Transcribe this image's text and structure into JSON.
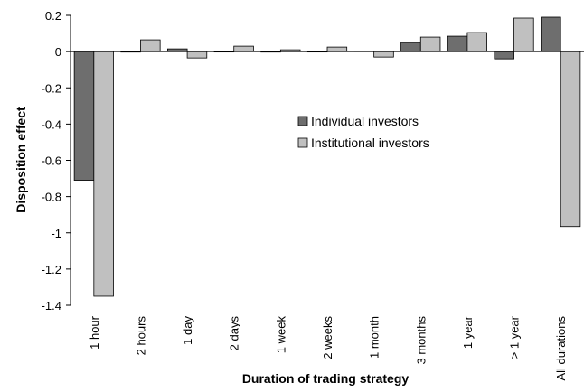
{
  "chart_data": {
    "type": "bar",
    "y_label": "Disposition effect",
    "x_label": "Duration of trading strategy",
    "categories": [
      "1 hour",
      "2 hours",
      "1 day",
      "2 days",
      "1 week",
      "2 weeks",
      "1 month",
      "3 months",
      "1 year",
      "> 1 year",
      "All durations"
    ],
    "series": [
      {
        "name": "Individual investors",
        "color": "#6e6e6e",
        "values": [
          -0.71,
          -0.003,
          0.015,
          0.0,
          -0.003,
          0.0,
          0.003,
          0.05,
          0.085,
          -0.04,
          0.19
        ]
      },
      {
        "name": "Institutional investors",
        "color": "#c0c0c0",
        "values": [
          -1.35,
          0.065,
          -0.035,
          0.03,
          0.01,
          0.025,
          -0.03,
          0.08,
          0.105,
          0.185,
          -0.965
        ]
      }
    ],
    "ylim": [
      -1.4,
      0.2
    ],
    "yticks": [
      -1.4,
      -1.2,
      -1,
      -0.8,
      -0.6,
      -0.4,
      -0.2,
      0,
      0.2
    ],
    "legend": "center"
  }
}
